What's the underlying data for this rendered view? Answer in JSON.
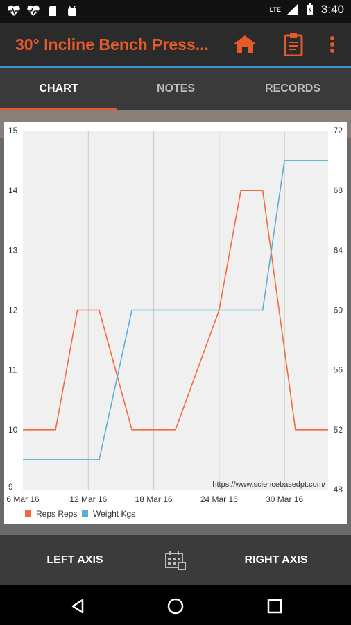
{
  "status": {
    "network": "LTE",
    "time": "3:40"
  },
  "appbar": {
    "title": "30° Incline Bench Press..."
  },
  "tabs": [
    {
      "label": "CHART",
      "active": true
    },
    {
      "label": "NOTES",
      "active": false
    },
    {
      "label": "RECORDS",
      "active": false
    }
  ],
  "chart_data": {
    "type": "line",
    "x_ticks": [
      "6 Mar 16",
      "12 Mar 16",
      "18 Mar 16",
      "24 Mar 16",
      "30 Mar 16"
    ],
    "y_left_ticks": [
      "9",
      "10",
      "11",
      "12",
      "13",
      "14",
      "15"
    ],
    "y_right_ticks": [
      "48",
      "52",
      "56",
      "60",
      "64",
      "68",
      "72"
    ],
    "y_left_range": [
      9,
      15
    ],
    "y_right_range": [
      48,
      72
    ],
    "x_range_days": [
      "6 Mar 16",
      "3 Apr 16"
    ],
    "grid": true,
    "watermark": "https://www.sciencebasedpt.com/",
    "series": [
      {
        "name": "Reps Reps",
        "axis": "left",
        "color": "#f26a3d",
        "points": [
          [
            "6 Mar 16",
            10
          ],
          [
            "9 Mar 16",
            10
          ],
          [
            "11 Mar 16",
            12
          ],
          [
            "13 Mar 16",
            12
          ],
          [
            "16 Mar 16",
            10
          ],
          [
            "20 Mar 16",
            10
          ],
          [
            "24 Mar 16",
            12
          ],
          [
            "26 Mar 16",
            14
          ],
          [
            "28 Mar 16",
            14
          ],
          [
            "31 Mar 16",
            10
          ],
          [
            "3 Apr 16",
            10
          ]
        ]
      },
      {
        "name": "Weight Kgs",
        "axis": "right",
        "color": "#5aaed6",
        "points": [
          [
            "6 Mar 16",
            50
          ],
          [
            "13 Mar 16",
            50
          ],
          [
            "16 Mar 16",
            60
          ],
          [
            "28 Mar 16",
            60
          ],
          [
            "30 Mar 16",
            70
          ],
          [
            "3 Apr 16",
            70
          ]
        ]
      }
    ]
  },
  "bottom": {
    "left_label": "LEFT AXIS",
    "right_label": "RIGHT AXIS"
  }
}
